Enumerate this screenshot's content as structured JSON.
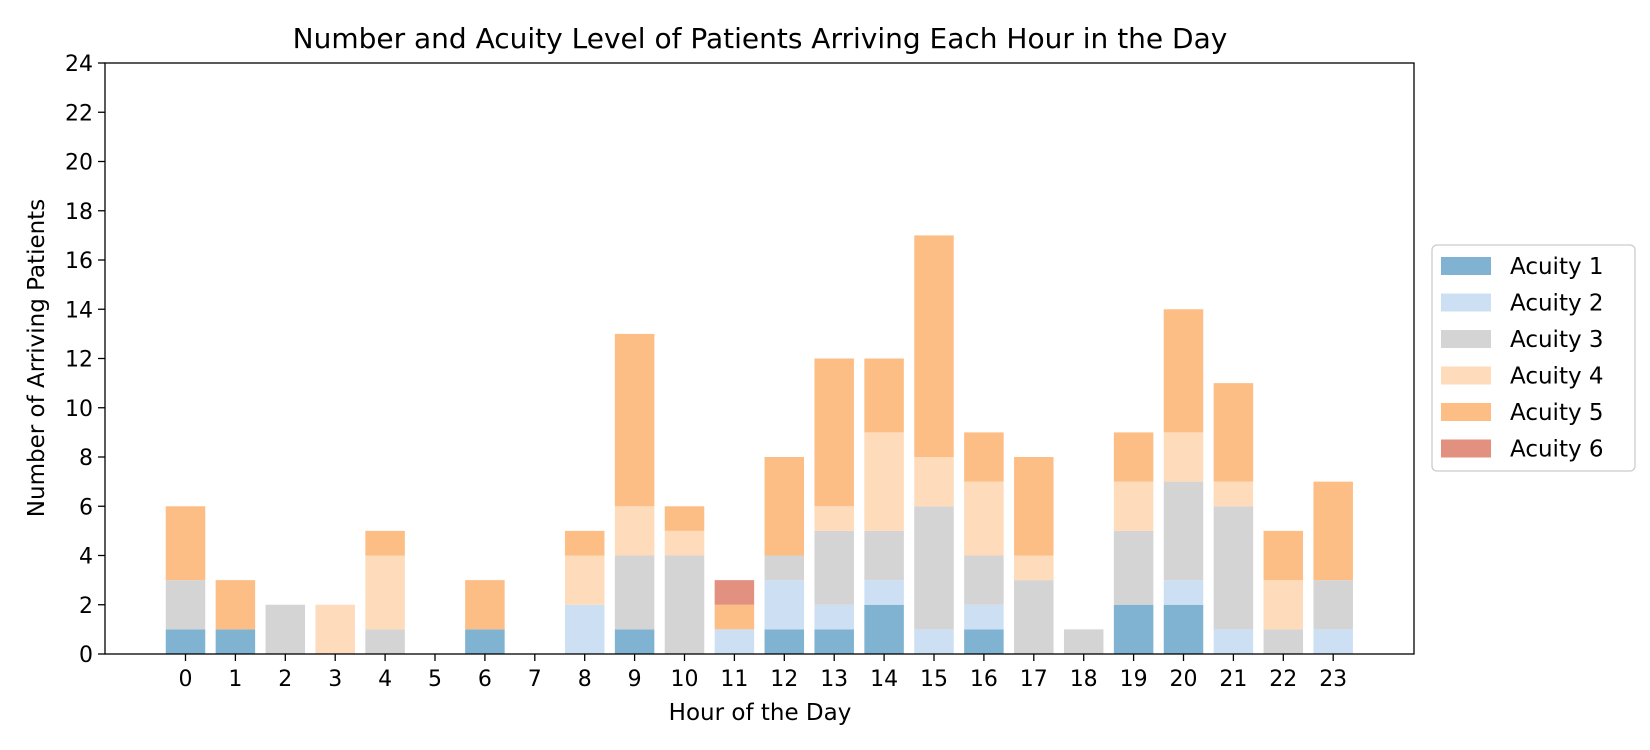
{
  "chart_data": {
    "type": "bar",
    "stacked": true,
    "title": "Number and Acuity Level of Patients Arriving Each Hour in the Day",
    "xlabel": "Hour of the Day",
    "ylabel": "Number of Arriving Patients",
    "ylim": [
      0,
      24
    ],
    "yticks": [
      "0",
      "2",
      "4",
      "6",
      "8",
      "10",
      "12",
      "14",
      "16",
      "18",
      "20",
      "22",
      "24"
    ],
    "categories": [
      "0",
      "1",
      "2",
      "3",
      "4",
      "5",
      "6",
      "7",
      "8",
      "9",
      "10",
      "11",
      "12",
      "13",
      "14",
      "15",
      "16",
      "17",
      "18",
      "19",
      "20",
      "21",
      "22",
      "23"
    ],
    "grid": false,
    "legend_position": "right",
    "series": [
      {
        "name": "Acuity 1",
        "color": "#7fb3d1",
        "values": [
          1,
          1,
          0,
          0,
          0,
          0,
          1,
          0,
          0,
          1,
          0,
          0,
          1,
          1,
          2,
          0,
          1,
          0,
          0,
          2,
          2,
          0,
          0,
          0
        ]
      },
      {
        "name": "Acuity 2",
        "color": "#cde0f3",
        "values": [
          0,
          0,
          0,
          0,
          0,
          0,
          0,
          0,
          2,
          0,
          0,
          1,
          2,
          1,
          1,
          1,
          1,
          0,
          0,
          0,
          1,
          1,
          0,
          1
        ]
      },
      {
        "name": "Acuity 3",
        "color": "#d4d4d4",
        "values": [
          2,
          0,
          2,
          0,
          1,
          0,
          0,
          0,
          0,
          3,
          4,
          0,
          1,
          3,
          2,
          5,
          2,
          3,
          1,
          3,
          4,
          5,
          1,
          2
        ]
      },
      {
        "name": "Acuity 4",
        "color": "#fddbbb",
        "values": [
          0,
          0,
          0,
          2,
          3,
          0,
          0,
          0,
          2,
          2,
          1,
          0,
          0,
          1,
          4,
          2,
          3,
          1,
          0,
          2,
          2,
          1,
          2,
          0
        ]
      },
      {
        "name": "Acuity 5",
        "color": "#fdbe86",
        "values": [
          3,
          2,
          0,
          0,
          1,
          0,
          2,
          0,
          1,
          7,
          1,
          1,
          4,
          6,
          3,
          9,
          2,
          4,
          0,
          2,
          5,
          4,
          2,
          4
        ]
      },
      {
        "name": "Acuity 6",
        "color": "#e2907f",
        "values": [
          0,
          0,
          0,
          0,
          0,
          0,
          0,
          0,
          0,
          0,
          0,
          1,
          0,
          0,
          0,
          0,
          0,
          0,
          0,
          0,
          0,
          0,
          0,
          0
        ]
      }
    ]
  }
}
